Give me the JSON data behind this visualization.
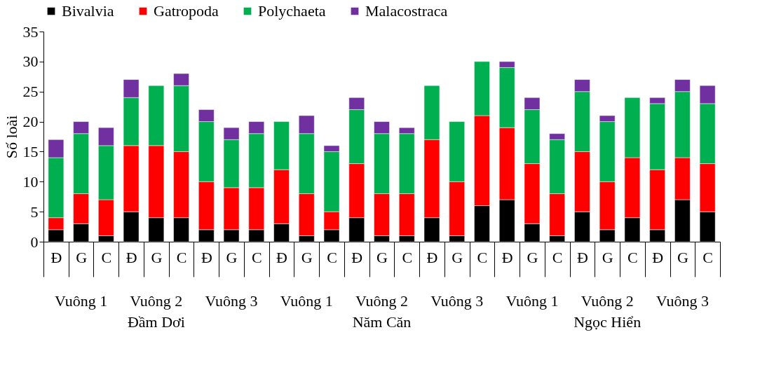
{
  "chart_data": {
    "type": "bar",
    "stacked": true,
    "ylabel": "Số loài",
    "categories": [
      "Đ",
      "G",
      "C",
      "Đ",
      "G",
      "C",
      "Đ",
      "G",
      "C",
      "Đ",
      "G",
      "C",
      "Đ",
      "G",
      "C",
      "Đ",
      "G",
      "C",
      "Đ",
      "G",
      "C",
      "Đ",
      "G",
      "C",
      "Đ",
      "G",
      "C"
    ],
    "series": [
      {
        "name": "Bivalvia",
        "color": "#000000",
        "values": [
          2,
          3,
          1,
          5,
          4,
          4,
          2,
          2,
          2,
          3,
          1,
          2,
          4,
          1,
          1,
          4,
          1,
          6,
          7,
          3,
          1,
          5,
          2,
          4,
          2,
          7,
          5
        ]
      },
      {
        "name": "Gatropoda",
        "color": "#ff0000",
        "values": [
          2,
          5,
          6,
          11,
          12,
          11,
          8,
          7,
          7,
          9,
          7,
          3,
          9,
          7,
          7,
          13,
          9,
          15,
          12,
          10,
          7,
          10,
          8,
          10,
          10,
          7,
          8
        ]
      },
      {
        "name": "Polychaeta",
        "color": "#00b050",
        "values": [
          10,
          10,
          9,
          8,
          10,
          11,
          10,
          8,
          9,
          8,
          10,
          10,
          9,
          10,
          10,
          9,
          10,
          9,
          10,
          9,
          9,
          10,
          10,
          10,
          11,
          11,
          10
        ]
      },
      {
        "name": "Malacostraca",
        "color": "#7030a0",
        "values": [
          3,
          2,
          3,
          3,
          null,
          2,
          2,
          2,
          2,
          null,
          3,
          1,
          2,
          2,
          1,
          null,
          null,
          null,
          1,
          2,
          1,
          2,
          1,
          null,
          1,
          2,
          3
        ]
      }
    ],
    "annotations": [
      "Vuông 1",
      "Vuông 2",
      "Vuông 3",
      "Vuông 1",
      "Vuông 2",
      "Vuông 3",
      "Vuông 1",
      "Vuông 2",
      "Vuông 3",
      "Đầm Dơi",
      "Năm Căn",
      "Ngọc Hiển"
    ],
    "ylim": [
      0,
      35
    ],
    "yticks": [
      0,
      5,
      10,
      15,
      20,
      25,
      30,
      35
    ],
    "grid": false,
    "legend": "top"
  }
}
